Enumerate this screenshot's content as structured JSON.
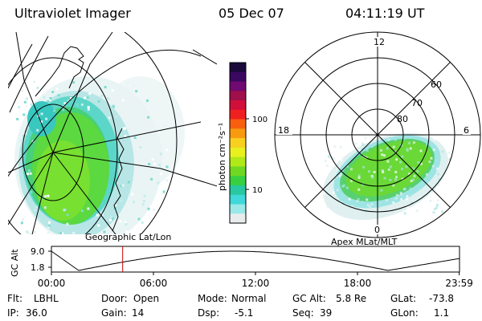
{
  "header": {
    "instrument": "Ultraviolet Imager",
    "date": "05 Dec 07",
    "time": "04:11:19 UT"
  },
  "left_panel": {
    "caption": "Geographic Lat/Lon"
  },
  "right_panel": {
    "caption": "Apex MLat/MLT",
    "mlt_labels": {
      "top": "12",
      "left": "18",
      "right": "6",
      "bottom": "0"
    },
    "lat_labels": [
      "60",
      "70",
      "80"
    ]
  },
  "colorbar": {
    "unit_label": "photon cm⁻²s⁻¹",
    "ticks": [
      "100",
      "10"
    ],
    "colors": [
      "#1a0a3a",
      "#3a0860",
      "#700a70",
      "#a0104a",
      "#d0103a",
      "#f02020",
      "#f86010",
      "#f89a10",
      "#f8d020",
      "#e8f020",
      "#b0e818",
      "#70d820",
      "#38d040",
      "#28c8a0",
      "#40d8d8",
      "#9ae8e8",
      "#e8ecec"
    ]
  },
  "timeline": {
    "axis_label": "GC Alt",
    "ymax": "9.0",
    "ymin": "1.8",
    "x_ticks": [
      "00:00",
      "06:00",
      "12:00",
      "18:00",
      "23:59"
    ],
    "current_hour": 4.19
  },
  "status": {
    "row1": [
      {
        "label": "Flt:",
        "value": "LBHL"
      },
      {
        "label": "Door:",
        "value": "Open"
      },
      {
        "label": "Mode:",
        "value": "Normal"
      },
      {
        "label": "GC Alt:",
        "value": "5.8 Re"
      },
      {
        "label": "GLat:",
        "value": "-73.8"
      }
    ],
    "row2": [
      {
        "label": "IP:",
        "value": "36.0"
      },
      {
        "label": "Gain:",
        "value": "14"
      },
      {
        "label": "Dsp:",
        "value": "-5.1"
      },
      {
        "label": "Seq:",
        "value": "39"
      },
      {
        "label": "GLon:",
        "value": "1.1"
      }
    ]
  }
}
